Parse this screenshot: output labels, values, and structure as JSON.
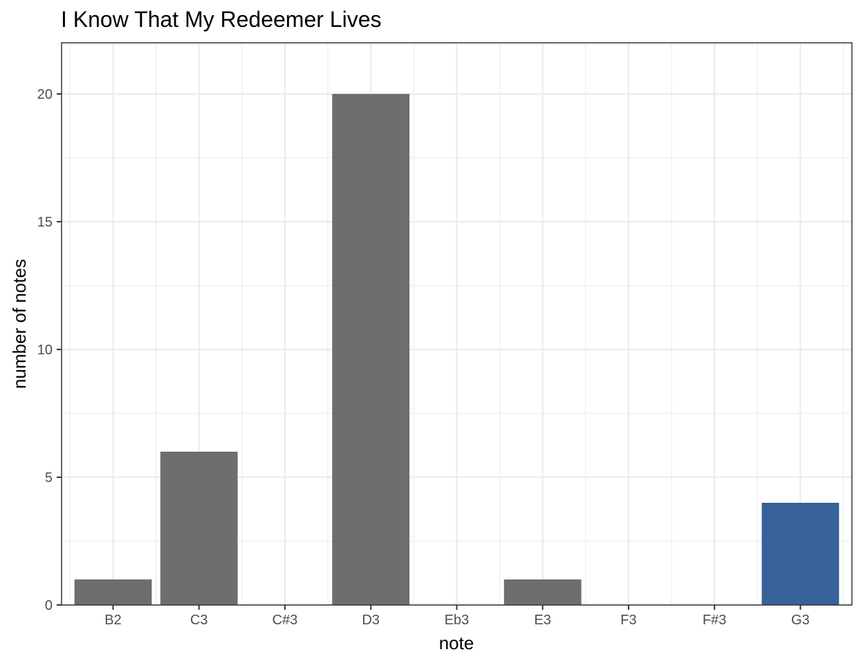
{
  "chart_data": {
    "type": "bar",
    "title": "I Know That My Redeemer Lives",
    "xlabel": "note",
    "ylabel": "number of notes",
    "categories": [
      "B2",
      "C3",
      "C#3",
      "D3",
      "Eb3",
      "E3",
      "F3",
      "F#3",
      "G3"
    ],
    "values": [
      1,
      6,
      0,
      20,
      0,
      1,
      0,
      0,
      4
    ],
    "bar_colors": [
      "#6e6e6e",
      "#6e6e6e",
      "#6e6e6e",
      "#6e6e6e",
      "#6e6e6e",
      "#6e6e6e",
      "#6e6e6e",
      "#6e6e6e",
      "#37629a"
    ],
    "ylim": [
      0,
      22
    ],
    "yticks": [
      0,
      5,
      10,
      15,
      20
    ],
    "grid": true
  }
}
